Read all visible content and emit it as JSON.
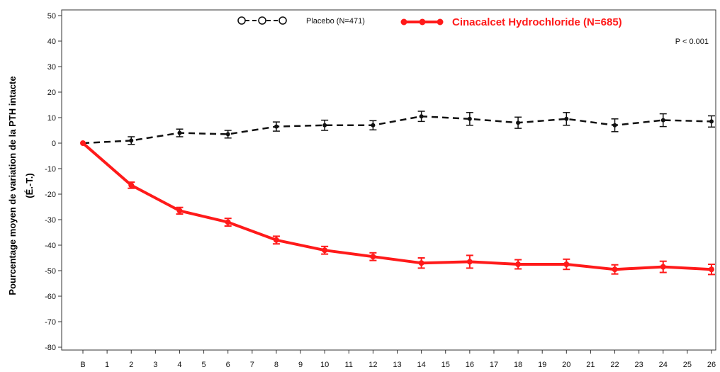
{
  "chart_data": {
    "type": "line",
    "ylabel_line1": "Pourcentage moyen de variation de la PTH intacte",
    "ylabel_line2": "(É.-T.)",
    "xlabel": "",
    "ylim": [
      -80,
      50
    ],
    "yticks": [
      50,
      40,
      30,
      20,
      10,
      0,
      -10,
      -20,
      -30,
      -40,
      -50,
      -60,
      -70,
      -80
    ],
    "categories": [
      "B",
      "1",
      "2",
      "3",
      "4",
      "5",
      "6",
      "7",
      "8",
      "9",
      "10",
      "11",
      "12",
      "13",
      "14",
      "15",
      "16",
      "17",
      "18",
      "19",
      "20",
      "21",
      "22",
      "23",
      "24",
      "25",
      "26"
    ],
    "pvalue": "P < 0.001",
    "series": [
      {
        "name": "Placebo (N=471)",
        "color": "#111111",
        "style": "dashed",
        "marker": "open-circle",
        "x": [
          "B",
          "2",
          "4",
          "6",
          "8",
          "10",
          "12",
          "14",
          "16",
          "18",
          "20",
          "22",
          "24",
          "26"
        ],
        "values": [
          0,
          1,
          4,
          3.5,
          6.5,
          7,
          7,
          10.5,
          9.5,
          8,
          9.5,
          7,
          9,
          8.5
        ],
        "err": [
          0,
          1.5,
          1.5,
          1.5,
          1.8,
          2,
          1.8,
          2,
          2.5,
          2.2,
          2.5,
          2.5,
          2.5,
          2.2
        ]
      },
      {
        "name": "Cinacalcet Hydrochloride (N=685)",
        "color": "#ff1a1a",
        "style": "solid",
        "marker": "filled-circle",
        "x": [
          "B",
          "2",
          "4",
          "6",
          "8",
          "10",
          "12",
          "14",
          "16",
          "18",
          "20",
          "22",
          "24",
          "26"
        ],
        "values": [
          0,
          -16.5,
          -26.5,
          -31,
          -38,
          -42,
          -44.5,
          -47,
          -46.5,
          -47.5,
          -47.5,
          -49.5,
          -48.5,
          -49.5
        ],
        "err": [
          0,
          1.2,
          1.3,
          1.5,
          1.5,
          1.5,
          1.5,
          2,
          2.5,
          1.8,
          2,
          1.8,
          2.2,
          2
        ]
      }
    ]
  }
}
